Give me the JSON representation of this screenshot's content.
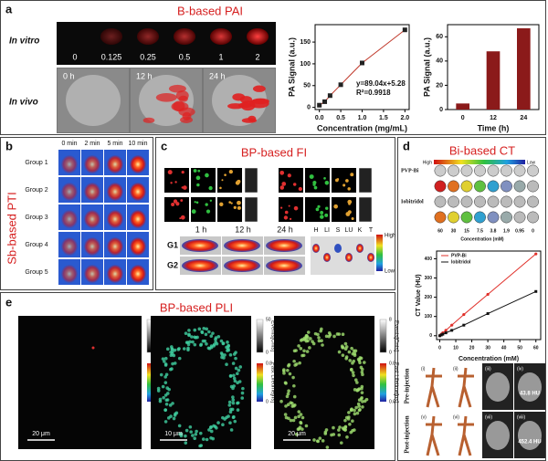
{
  "panels": {
    "a": {
      "label": "a",
      "title": "B-based PAI",
      "rows": [
        "In vitro",
        "In vivo"
      ],
      "concentrations": [
        "0",
        "0.125",
        "0.25",
        "0.5",
        "1",
        "2"
      ],
      "times": [
        "0 h",
        "12 h",
        "24 h"
      ]
    },
    "b": {
      "label": "b",
      "title": "Sb-based PTI",
      "times": [
        "0 min",
        "2 min",
        "5 min",
        "10 min"
      ],
      "groups": [
        "Group 1",
        "Group 2",
        "Group 3",
        "Group 4",
        "Group 5"
      ]
    },
    "c": {
      "label": "c",
      "title": "BP-based FI",
      "times": [
        "1 h",
        "12 h",
        "24 h"
      ],
      "rows": [
        "G1",
        "G2"
      ],
      "organs": [
        "H",
        "LI",
        "S",
        "LU",
        "K",
        "T"
      ],
      "high": "High",
      "low": "Low"
    },
    "d": {
      "label": "d",
      "title": "Bi-based CT",
      "high": "High",
      "low": "Low",
      "rows": [
        "PVP-Bi",
        "Iobitridol"
      ],
      "concentrations": [
        "60",
        "30",
        "15",
        "7.5",
        "3.8",
        "1.9",
        "0.95",
        "0"
      ],
      "concentration_label": "Concentration (mM)",
      "panels": [
        "(i)",
        "(ii)",
        "(iii)",
        "(iv)",
        "(v)",
        "(vi)",
        "(vii)",
        "(viii)"
      ],
      "phases": [
        "Pre-injection",
        "Post-injection"
      ],
      "hu": [
        "43.8 HU",
        "452.4 HU"
      ]
    },
    "e": {
      "label": "e",
      "title": "BP-based PLI",
      "events_label": "Events[Cnts]",
      "lifetime_label": "Fast Lifetime[ns]",
      "colorbars": [
        [
          "50",
          "0",
          "0.8",
          "0"
        ],
        [
          "50",
          "0",
          "0.8",
          "0"
        ],
        [
          "8",
          "0",
          "0.8",
          "0.0"
        ]
      ],
      "scalebars": [
        "20 μm",
        "10 μm",
        "20 μm"
      ]
    }
  },
  "chart_data": [
    {
      "type": "scatter",
      "xlabel": "Concentration (mg/mL)",
      "ylabel": "PA Signal (a.u.)",
      "x": [
        0,
        0.125,
        0.25,
        0.5,
        1,
        2
      ],
      "values": [
        5,
        13,
        27,
        52,
        102,
        178
      ],
      "color": "#222222",
      "line_color": "#c0392b",
      "annotations": [
        "y=89.04x+5.28",
        "R²=0.9918"
      ],
      "xlim": [
        -0.1,
        2.1
      ],
      "xticks": [
        {
          "value": 0,
          "label": "0.0"
        },
        {
          "value": 0.5,
          "label": "0.5"
        },
        {
          "value": 1,
          "label": "1.0"
        },
        {
          "value": 1.5,
          "label": "1.5"
        },
        {
          "value": 2,
          "label": "2.0"
        }
      ],
      "ylim": [
        -5,
        190
      ],
      "yticks": [
        0,
        50,
        100,
        150
      ]
    },
    {
      "type": "bar",
      "xlabel": "Time (h)",
      "ylabel": "PA Signal (a.u.)",
      "categories": [
        "0",
        "12",
        "24"
      ],
      "values": [
        5,
        48,
        67
      ],
      "color": "#8b1a1a",
      "ylim": [
        0,
        70
      ],
      "yticks": [
        0,
        20,
        40,
        60
      ]
    },
    {
      "type": "line",
      "xlabel": "Concentration (mM)",
      "ylabel": "CT Value (HU)",
      "legend": "upper left",
      "x": [
        0,
        0.95,
        1.9,
        3.8,
        7.5,
        15,
        30,
        60
      ],
      "series": [
        {
          "name": "PVP-Bi",
          "color": "#e0302a",
          "values": [
            0,
            8,
            15,
            28,
            55,
            110,
            215,
            425
          ]
        },
        {
          "name": "Iobitridol",
          "color": "#111111",
          "values": [
            0,
            4,
            8,
            15,
            28,
            55,
            115,
            230
          ]
        }
      ],
      "xlim": [
        -2,
        63
      ],
      "xticks": [
        0,
        10,
        20,
        30,
        40,
        50,
        60
      ],
      "ylim": [
        -20,
        440
      ],
      "yticks": [
        0,
        100,
        200,
        300,
        400
      ]
    }
  ]
}
